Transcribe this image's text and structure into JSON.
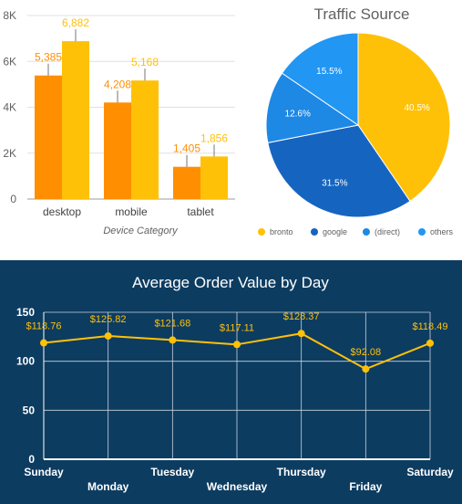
{
  "chart_data": [
    {
      "type": "bar",
      "xlabel": "Device Category",
      "ylabel": "",
      "categories": [
        "desktop",
        "mobile",
        "tablet"
      ],
      "series": [
        {
          "values": [
            5385,
            4208,
            1405
          ],
          "labels": [
            "5,385",
            "4,208",
            "1,405"
          ],
          "color": "#FF8F00"
        },
        {
          "values": [
            6882,
            5168,
            1856
          ],
          "labels": [
            "6,882",
            "5,168",
            "1,856"
          ],
          "color": "#FFC107"
        }
      ],
      "ylim": [
        0,
        8000
      ],
      "yticks": [
        0,
        2000,
        4000,
        6000,
        8000
      ],
      "ytick_labels": [
        "0",
        "2K",
        "4K",
        "6K",
        "8K"
      ],
      "grid": true
    },
    {
      "type": "pie",
      "title": "Traffic Source",
      "slices": [
        {
          "name": "bronto",
          "value": 40.5,
          "label": "40.5%",
          "color": "#FFC107"
        },
        {
          "name": "google",
          "value": 31.5,
          "label": "31.5%",
          "color": "#1565C0"
        },
        {
          "name": "(direct)",
          "value": 12.6,
          "label": "12.6%",
          "color": "#1E88E5"
        },
        {
          "name": "others",
          "value": 15.5,
          "label": "15.5%",
          "color": "#2196F3"
        }
      ],
      "legend_position": "bottom"
    },
    {
      "type": "line",
      "title": "Average Order Value by Day",
      "categories": [
        "Sunday",
        "Monday",
        "Tuesday",
        "Wednesday",
        "Thursday",
        "Friday",
        "Saturday"
      ],
      "values": [
        118.76,
        125.82,
        121.68,
        117.11,
        128.37,
        92.08,
        118.49
      ],
      "labels": [
        "$118.76",
        "$125.82",
        "$121.68",
        "$117.11",
        "$128.37",
        "$92.08",
        "$118.49"
      ],
      "ylim": [
        0,
        150
      ],
      "yticks": [
        0,
        50,
        100,
        150
      ],
      "grid": true,
      "background": "#0D3C61",
      "line_color": "#FFC107"
    }
  ]
}
